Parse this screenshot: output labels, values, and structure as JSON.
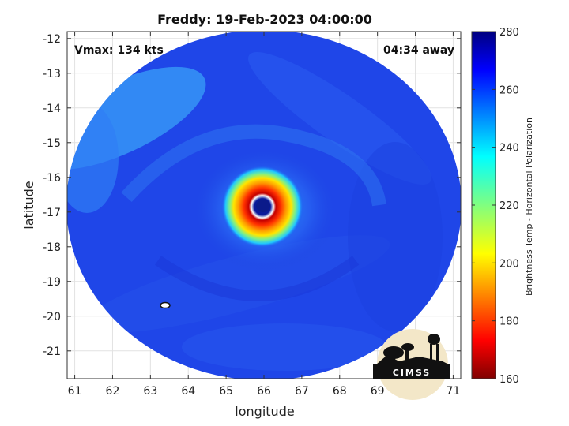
{
  "chart_data": {
    "type": "heatmap",
    "title": "Freddy: 19-Feb-2023 04:00:00",
    "xlabel": "longitude",
    "ylabel": "latitude",
    "xlim": [
      60.8,
      71.2
    ],
    "ylim": [
      -21.8,
      -11.8
    ],
    "xticks": [
      61,
      62,
      63,
      64,
      65,
      66,
      67,
      68,
      69,
      70,
      71
    ],
    "yticks": [
      -12,
      -13,
      -14,
      -15,
      -16,
      -17,
      -18,
      -19,
      -20,
      -21
    ],
    "grid": true,
    "annotations": {
      "left": "Vmax: 134 kts",
      "right": "04:34 away"
    },
    "storm_center": {
      "lon": 66.0,
      "lat": -16.9
    },
    "colorbar": {
      "label": "Brightness Temp - Horizontal Polarization",
      "range": [
        160,
        280
      ],
      "ticks": [
        280,
        260,
        240,
        220,
        200,
        180,
        160
      ],
      "colormap": "jet"
    }
  },
  "logo_text": "CIMSS"
}
